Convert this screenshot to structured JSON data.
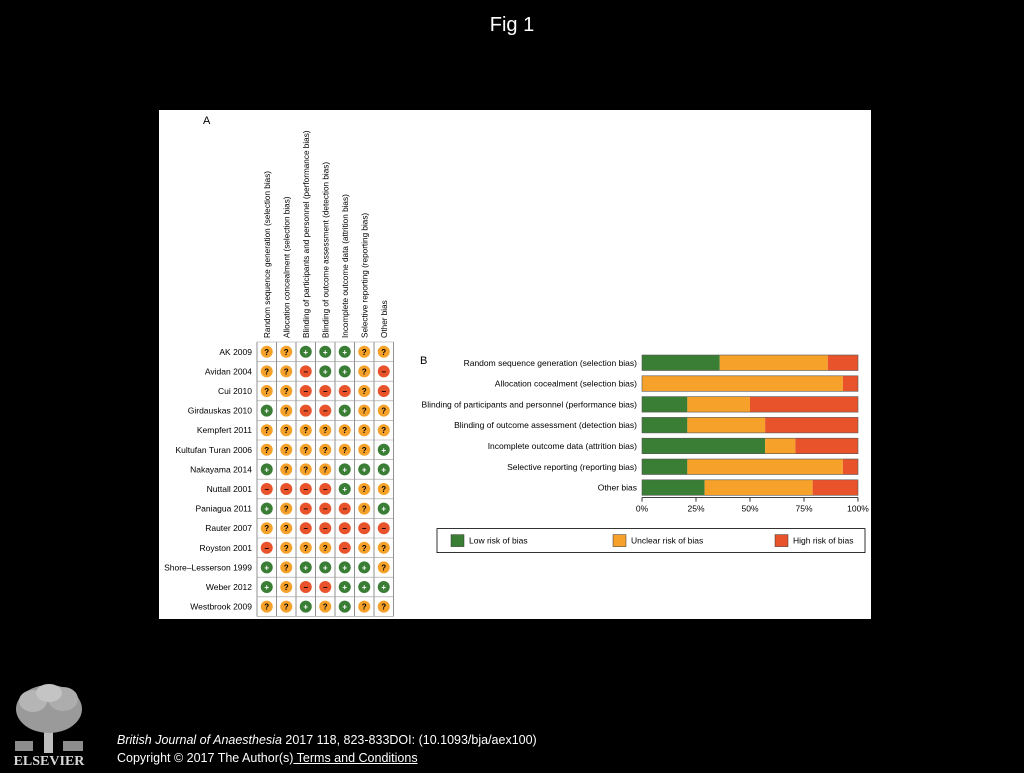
{
  "slide": {
    "title": "Fig 1"
  },
  "caption": {
    "journal": "British Journal of Anaesthesia",
    "citation": " 2017 118, 823-833DOI: (10.1093/bja/aex100)",
    "copyright": "Copyright © 2017 The Author(s)",
    "terms_link": " Terms and Conditions"
  },
  "logo": {
    "text": "ELSEVIER",
    "icon": "elsevier-tree-icon"
  },
  "colors": {
    "low": "#3a7d35",
    "unclear": "#f5a12a",
    "high": "#e8532c"
  },
  "chart_data": [
    {
      "type": "table",
      "panel_label": "A",
      "symbols": {
        "low": "+",
        "unclear": "?",
        "high": "−"
      },
      "domains": [
        "Random sequence generation (selection bias)",
        "Allocation concealment (selection bias)",
        "Blinding of participants and personnel (performance bias)",
        "Blinding of outcome assessment (detection bias)",
        "Incomplete outcome data (attrition bias)",
        "Selective reporting (reporting bias)",
        "Other bias"
      ],
      "studies": [
        {
          "name": "AK 2009",
          "ratings": [
            "unclear",
            "unclear",
            "low",
            "low",
            "low",
            "unclear",
            "unclear"
          ]
        },
        {
          "name": "Avidan 2004",
          "ratings": [
            "unclear",
            "unclear",
            "high",
            "low",
            "low",
            "unclear",
            "high"
          ]
        },
        {
          "name": "Cui 2010",
          "ratings": [
            "unclear",
            "unclear",
            "high",
            "high",
            "high",
            "unclear",
            "high"
          ]
        },
        {
          "name": "Girdauskas 2010",
          "ratings": [
            "low",
            "unclear",
            "high",
            "high",
            "low",
            "unclear",
            "unclear"
          ]
        },
        {
          "name": "Kempfert 2011",
          "ratings": [
            "unclear",
            "unclear",
            "unclear",
            "unclear",
            "unclear",
            "unclear",
            "unclear"
          ]
        },
        {
          "name": "Kultufan Turan 2006",
          "ratings": [
            "unclear",
            "unclear",
            "unclear",
            "unclear",
            "unclear",
            "unclear",
            "low"
          ]
        },
        {
          "name": "Nakayama 2014",
          "ratings": [
            "low",
            "unclear",
            "unclear",
            "unclear",
            "low",
            "low",
            "low"
          ]
        },
        {
          "name": "Nuttall 2001",
          "ratings": [
            "high",
            "high",
            "high",
            "high",
            "low",
            "unclear",
            "unclear"
          ]
        },
        {
          "name": "Paniagua 2011",
          "ratings": [
            "low",
            "unclear",
            "high",
            "high",
            "high",
            "unclear",
            "low"
          ]
        },
        {
          "name": "Rauter 2007",
          "ratings": [
            "unclear",
            "unclear",
            "high",
            "high",
            "high",
            "high",
            "high"
          ]
        },
        {
          "name": "Royston 2001",
          "ratings": [
            "high",
            "unclear",
            "unclear",
            "unclear",
            "high",
            "unclear",
            "unclear"
          ]
        },
        {
          "name": "Shore–Lesserson 1999",
          "ratings": [
            "low",
            "unclear",
            "low",
            "low",
            "low",
            "low",
            "unclear"
          ]
        },
        {
          "name": "Weber 2012",
          "ratings": [
            "low",
            "unclear",
            "high",
            "high",
            "low",
            "low",
            "low"
          ]
        },
        {
          "name": "Westbrook 2009",
          "ratings": [
            "unclear",
            "unclear",
            "low",
            "unclear",
            "low",
            "unclear",
            "unclear"
          ]
        }
      ]
    },
    {
      "type": "bar",
      "stacked": true,
      "orientation": "horizontal",
      "panel_label": "B",
      "categories": [
        "Random sequence generation (selection bias)",
        "Allocation cocealment (selection bias)",
        "Blinding of participants and personnel (performance bias)",
        "Blinding of outcome assessment (detection bias)",
        "Incomplete outcome data (attrition bias)",
        "Selective reporting (reporting bias)",
        "Other bias"
      ],
      "series": [
        {
          "name": "Low risk of bias",
          "key": "low",
          "values": [
            36,
            0,
            21,
            21,
            57,
            21,
            29
          ]
        },
        {
          "name": "Unclear risk of bias",
          "key": "unclear",
          "values": [
            50,
            93,
            29,
            36,
            14,
            72,
            50
          ]
        },
        {
          "name": "High risk of bias",
          "key": "high",
          "values": [
            14,
            7,
            50,
            43,
            29,
            7,
            21
          ]
        }
      ],
      "xlim": [
        0,
        100
      ],
      "xticks": [
        0,
        25,
        50,
        75,
        100
      ],
      "xtick_labels": [
        "0%",
        "25%",
        "50%",
        "75%",
        "100%"
      ],
      "legend": "bottom"
    }
  ]
}
